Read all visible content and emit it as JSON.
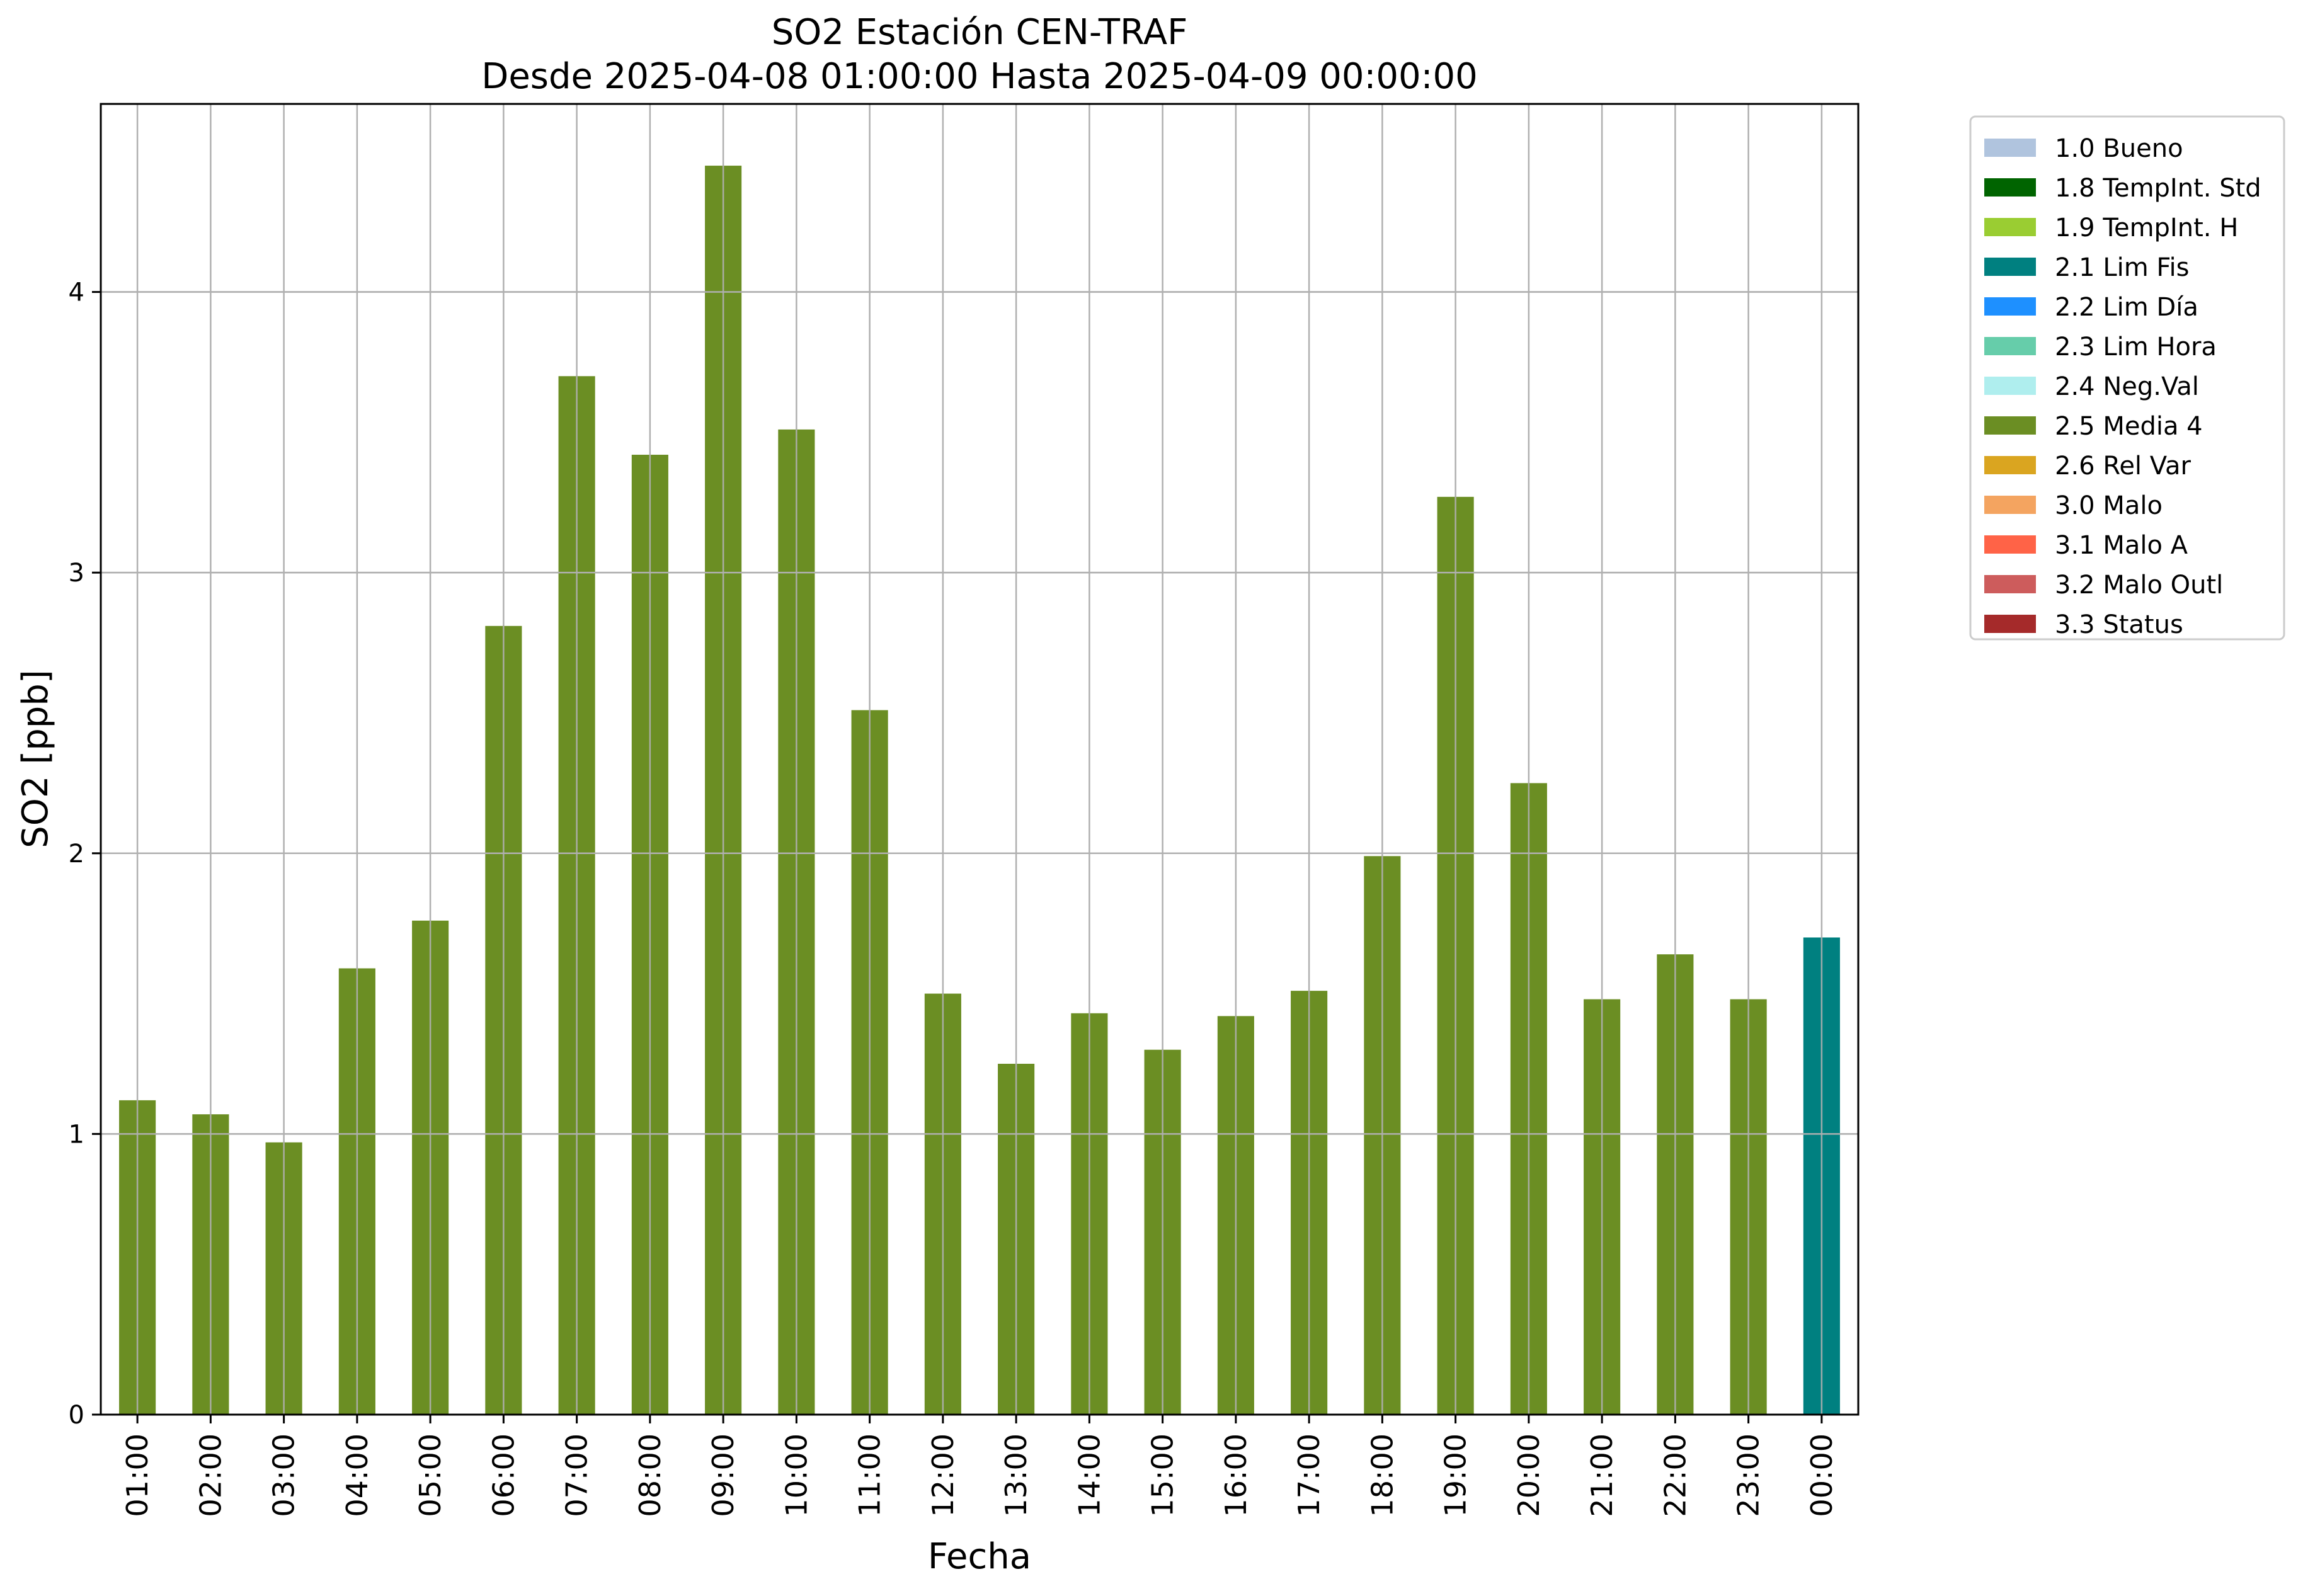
{
  "chart_data": {
    "type": "bar",
    "title_line1": "SO2 Estación CEN-TRAF",
    "title_line2": "Desde 2025-04-08 01:00:00 Hasta 2025-04-09 00:00:00",
    "xlabel": "Fecha",
    "ylabel": "SO2 [ppb]",
    "ylim": [
      0,
      4.67
    ],
    "yticks": [
      "0",
      "1",
      "2",
      "3",
      "4"
    ],
    "grid": true,
    "legend_position": "outside-right-top",
    "categories": [
      "01:00",
      "02:00",
      "03:00",
      "04:00",
      "05:00",
      "06:00",
      "07:00",
      "08:00",
      "09:00",
      "10:00",
      "11:00",
      "12:00",
      "13:00",
      "14:00",
      "15:00",
      "16:00",
      "17:00",
      "18:00",
      "19:00",
      "20:00",
      "21:00",
      "22:00",
      "23:00",
      "00:00"
    ],
    "values": [
      1.12,
      1.07,
      0.97,
      1.59,
      1.76,
      2.81,
      3.7,
      3.42,
      4.45,
      3.51,
      2.51,
      1.5,
      1.25,
      1.43,
      1.3,
      1.42,
      1.51,
      1.99,
      3.27,
      2.25,
      1.48,
      1.64,
      1.48,
      1.7
    ],
    "flags": [
      "2.5 Media 4",
      "2.5 Media 4",
      "2.5 Media 4",
      "2.5 Media 4",
      "2.5 Media 4",
      "2.5 Media 4",
      "2.5 Media 4",
      "2.5 Media 4",
      "2.5 Media 4",
      "2.5 Media 4",
      "2.5 Media 4",
      "2.5 Media 4",
      "2.5 Media 4",
      "2.5 Media 4",
      "2.5 Media 4",
      "2.5 Media 4",
      "2.5 Media 4",
      "2.5 Media 4",
      "2.5 Media 4",
      "2.5 Media 4",
      "2.5 Media 4",
      "2.5 Media 4",
      "2.5 Media 4",
      "2.1 Lim Fis"
    ],
    "legend": [
      {
        "label": "1.0 Bueno",
        "color": "#b0c4de"
      },
      {
        "label": "1.8 TempInt. Std",
        "color": "#006400"
      },
      {
        "label": "1.9 TempInt. H",
        "color": "#9acd32"
      },
      {
        "label": "2.1 Lim Fis",
        "color": "#008080"
      },
      {
        "label": "2.2 Lim Día",
        "color": "#1e90ff"
      },
      {
        "label": "2.3 Lim Hora",
        "color": "#66cdaa"
      },
      {
        "label": "2.4 Neg.Val",
        "color": "#afeeee"
      },
      {
        "label": "2.5 Media 4",
        "color": "#6b8e23"
      },
      {
        "label": "2.6 Rel Var",
        "color": "#daa520"
      },
      {
        "label": "3.0 Malo",
        "color": "#f4a460"
      },
      {
        "label": "3.1 Malo A",
        "color": "#ff6347"
      },
      {
        "label": "3.2 Malo Outl",
        "color": "#cd5c5c"
      },
      {
        "label": "3.3 Status",
        "color": "#a52a2a"
      }
    ]
  }
}
